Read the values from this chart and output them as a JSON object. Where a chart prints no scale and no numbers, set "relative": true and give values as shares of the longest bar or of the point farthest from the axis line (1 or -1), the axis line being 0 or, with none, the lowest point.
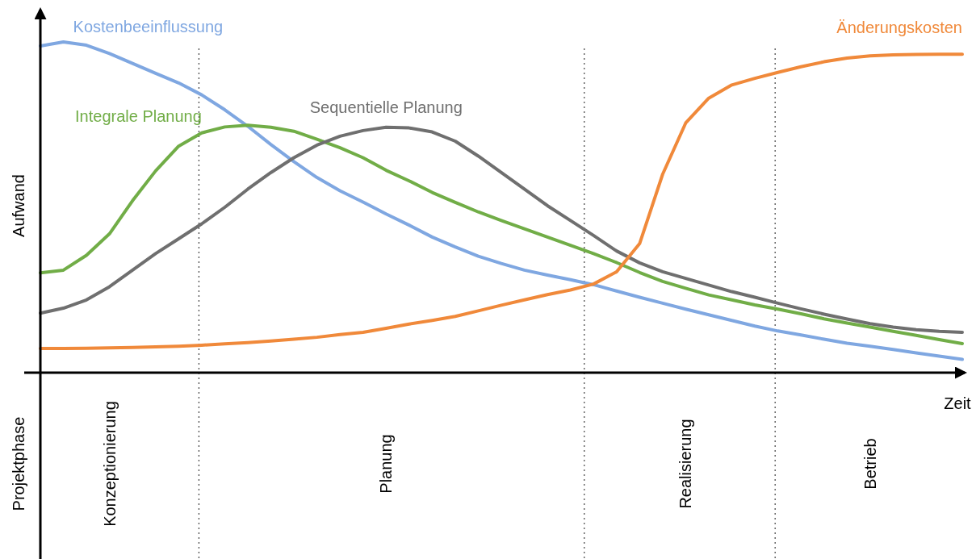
{
  "chart_data": {
    "type": "line",
    "relative": true,
    "xlabel": "Zeit",
    "ylabel": "Aufwand",
    "annotations": [
      "Projektphase"
    ],
    "marker": "none",
    "line_style": "solid",
    "categories": [
      null,
      null,
      null,
      "Konzeptionierung",
      null,
      null,
      null,
      null,
      null,
      null,
      null,
      null,
      null,
      null,
      null,
      "Planung",
      null,
      null,
      null,
      null,
      null,
      null,
      null,
      null,
      null,
      null,
      null,
      null,
      "Realisierung",
      null,
      null,
      null,
      null,
      null,
      null,
      null,
      "Betrieb",
      null,
      null,
      null,
      null
    ],
    "series": [
      {
        "name": "Kostenbeeinflussung",
        "color": "#7fa7e1",
        "values": [
          0.988,
          1.0,
          0.99,
          0.965,
          0.935,
          0.905,
          0.876,
          0.84,
          0.795,
          0.745,
          0.69,
          0.638,
          0.59,
          0.55,
          0.516,
          0.48,
          0.446,
          0.41,
          0.38,
          0.352,
          0.33,
          0.31,
          0.295,
          0.281,
          0.266,
          0.247,
          0.228,
          0.21,
          0.192,
          0.175,
          0.158,
          0.141,
          0.126,
          0.114,
          0.101,
          0.089,
          0.08,
          0.07,
          0.06,
          0.05,
          0.04
        ]
      },
      {
        "name": "Integrale Planung",
        "color": "#71ad47",
        "values": [
          0.302,
          0.31,
          0.355,
          0.42,
          0.52,
          0.61,
          0.685,
          0.725,
          0.743,
          0.748,
          0.742,
          0.73,
          0.706,
          0.68,
          0.65,
          0.612,
          0.58,
          0.545,
          0.515,
          0.486,
          0.46,
          0.435,
          0.41,
          0.385,
          0.36,
          0.333,
          0.303,
          0.276,
          0.255,
          0.235,
          0.22,
          0.205,
          0.192,
          0.178,
          0.163,
          0.15,
          0.138,
          0.125,
          0.113,
          0.1,
          0.088
        ]
      },
      {
        "name": "Sequentielle Planung",
        "color": "#6f6f6f",
        "values": [
          0.18,
          0.195,
          0.22,
          0.26,
          0.31,
          0.36,
          0.405,
          0.45,
          0.5,
          0.555,
          0.605,
          0.65,
          0.688,
          0.715,
          0.732,
          0.742,
          0.74,
          0.728,
          0.7,
          0.655,
          0.605,
          0.555,
          0.505,
          0.46,
          0.415,
          0.368,
          0.332,
          0.305,
          0.285,
          0.265,
          0.245,
          0.228,
          0.21,
          0.193,
          0.177,
          0.162,
          0.148,
          0.138,
          0.13,
          0.125,
          0.122
        ]
      },
      {
        "name": "Änderungskosten",
        "color": "#f0893a",
        "values": [
          0.073,
          0.073,
          0.074,
          0.075,
          0.076,
          0.078,
          0.08,
          0.083,
          0.087,
          0.091,
          0.096,
          0.101,
          0.107,
          0.115,
          0.122,
          0.134,
          0.147,
          0.158,
          0.17,
          0.187,
          0.204,
          0.22,
          0.236,
          0.25,
          0.268,
          0.305,
          0.39,
          0.6,
          0.755,
          0.83,
          0.87,
          0.89,
          0.908,
          0.925,
          0.94,
          0.951,
          0.958,
          0.961,
          0.962,
          0.963,
          0.963
        ]
      }
    ]
  }
}
